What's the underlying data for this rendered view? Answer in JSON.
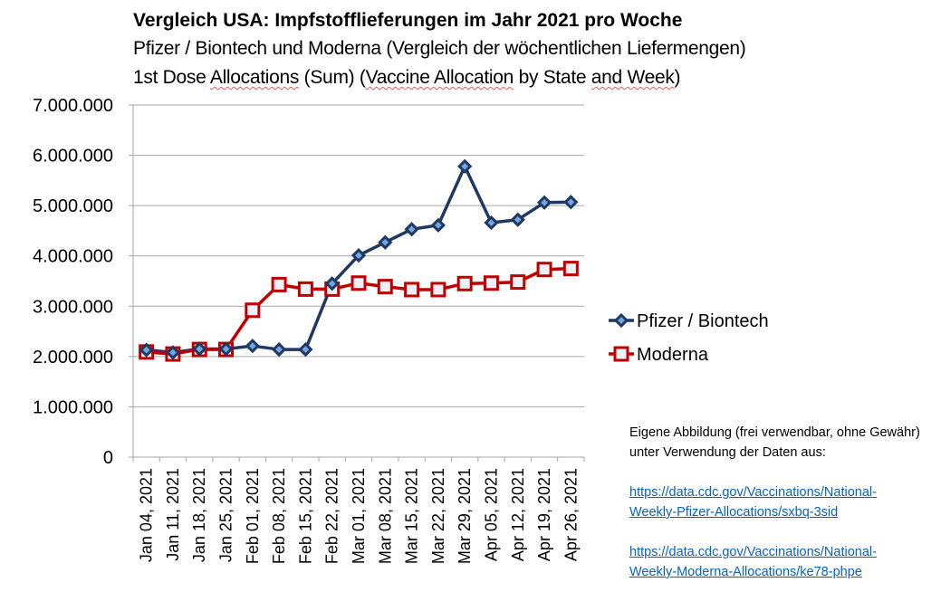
{
  "chart_data": {
    "type": "line",
    "title": "Vergleich USA: Impfstofflieferungen im Jahr 2021 pro Woche",
    "subtitle_line1": "Pfizer / Biontech und Moderna (Vergleich der wöchentlichen Liefermengen)",
    "subtitle_line2_parts": [
      "1st Dose ",
      "Allocations",
      " (Sum) (",
      "Vaccine Allocation",
      " by State ",
      "and Week",
      ")"
    ],
    "categories": [
      "Jan 04, 2021",
      "Jan 11, 2021",
      "Jan 18, 2021",
      "Jan 25, 2021",
      "Feb 01, 2021",
      "Feb 08, 2021",
      "Feb 15, 2021",
      "Feb 22, 2021",
      "Mar 01, 2021",
      "Mar 08, 2021",
      "Mar 15, 2021",
      "Mar 22, 2021",
      "Mar 29, 2021",
      "Apr 05, 2021",
      "Apr 12, 2021",
      "Apr 19, 2021",
      "Apr 26, 2021"
    ],
    "ylim": [
      0,
      7000000
    ],
    "yticks": [
      0,
      1000000,
      2000000,
      3000000,
      4000000,
      5000000,
      6000000,
      7000000
    ],
    "ytick_labels": [
      "0",
      "1.000.000",
      "2.000.000",
      "3.000.000",
      "4.000.000",
      "5.000.000",
      "6.000.000",
      "7.000.000"
    ],
    "grid": true,
    "legend_placement": "right",
    "series": [
      {
        "name": "Pfizer / Biontech",
        "color": "#1f3864",
        "marker": "diamond",
        "values": [
          2130000,
          2080000,
          2150000,
          2150000,
          2210000,
          2140000,
          2140000,
          3450000,
          4010000,
          4270000,
          4530000,
          4610000,
          5780000,
          4660000,
          4720000,
          5060000,
          5070000
        ]
      },
      {
        "name": "Moderna",
        "color": "#c00000",
        "marker": "square",
        "values": [
          2090000,
          2050000,
          2140000,
          2140000,
          2920000,
          3430000,
          3340000,
          3340000,
          3460000,
          3390000,
          3330000,
          3330000,
          3450000,
          3460000,
          3480000,
          3730000,
          3750000
        ]
      }
    ]
  },
  "note": {
    "text": "Eigene Abbildung (frei verwendbar, ohne Gewähr) unter Verwendung der Daten aus:",
    "link1": [
      "https://data.cdc.gov/Vaccinations/National-",
      "Weekly-Pfizer-Allocations/sxbq-3sid"
    ],
    "link2": [
      "https://data.cdc.gov/Vaccinations/National-",
      "Weekly-Moderna-Allocations/ke78-phpe"
    ],
    "link_color": "#0563c1"
  }
}
